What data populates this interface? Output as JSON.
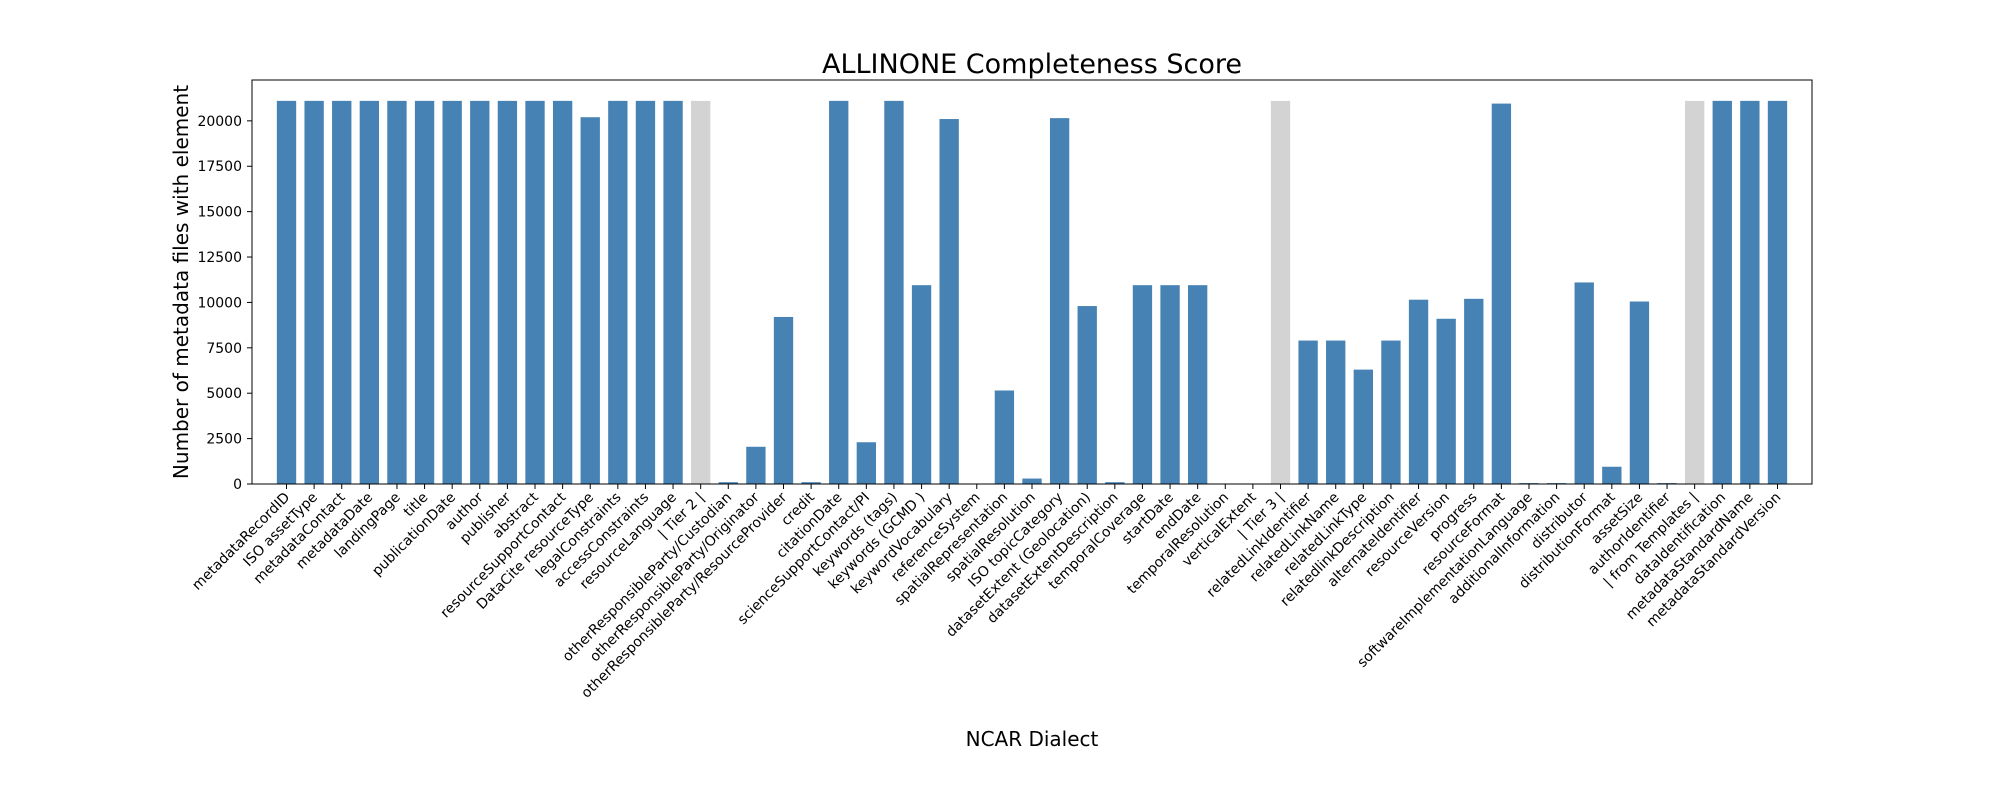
{
  "chart_data": {
    "type": "bar",
    "title": "ALLINONE Completeness Score",
    "xlabel": "NCAR Dialect",
    "ylabel": "Number of metadata files with element",
    "ylim": [
      0,
      22250
    ],
    "yticks": [
      0,
      2500,
      5000,
      7500,
      10000,
      12500,
      15000,
      17500,
      20000
    ],
    "grid": false,
    "colors": {
      "bar": "#4682b4",
      "separator": "#d3d3d3"
    },
    "categories": [
      "metadataRecordID",
      "ISO assetType",
      "metadataContact",
      "metadataDate",
      "landingPage",
      "title",
      "publicationDate",
      "author",
      "publisher",
      "abstract",
      "resourceSupportContact",
      "DataCite resourceType",
      "legalConstraints",
      "accessConstraints",
      "resourceLanguage",
      "| Tier 2 |",
      "otherResponsibleParty/Custodian",
      "otherResponsibleParty/Originator",
      "otherResponsibleParty/ResourceProvider",
      "credit",
      "citationDate",
      "scienceSupportContact/PI",
      "keywords (tags)",
      "keywords (GCMD )",
      "keywordVocabulary",
      "referenceSystem",
      "spatialRepresentation",
      "spatialResolution",
      "ISO topicCategory",
      "datasetExtent (Geolocation)",
      "datasetExtentDescription",
      "temporalCoverage",
      "startDate",
      "endDate",
      "temporalResolution",
      "verticalExtent",
      "| Tier 3 |",
      "relatedLinkIdentifier",
      "relatedLinkName",
      "relatedLinkType",
      "relatedlinkDescription",
      "alternateIdentifier",
      "resourceVersion",
      "progress",
      "resourceFormat",
      "softwareImplementationLanguage",
      "additionalInformation",
      "distributor",
      "distributionFormat",
      "assetSize",
      "authorIdentifier",
      "| from Templates |",
      "dataIdentification",
      "metadataStandardName",
      "metadataStandardVersion"
    ],
    "values": [
      21100,
      21100,
      21100,
      21100,
      21100,
      21100,
      21100,
      21100,
      21100,
      21100,
      21100,
      20200,
      21100,
      21100,
      21100,
      21100,
      100,
      2050,
      9200,
      100,
      21100,
      2300,
      21100,
      10950,
      20100,
      0,
      5150,
      300,
      20150,
      9800,
      100,
      10950,
      10950,
      10950,
      0,
      0,
      21100,
      7900,
      7900,
      6300,
      7900,
      10150,
      9100,
      10200,
      20950,
      50,
      50,
      11100,
      950,
      10050,
      50,
      21100,
      21100,
      21100,
      21100
    ],
    "separator_categories": [
      "| Tier 2 |",
      "| Tier 3 |",
      "| from Templates |"
    ]
  }
}
